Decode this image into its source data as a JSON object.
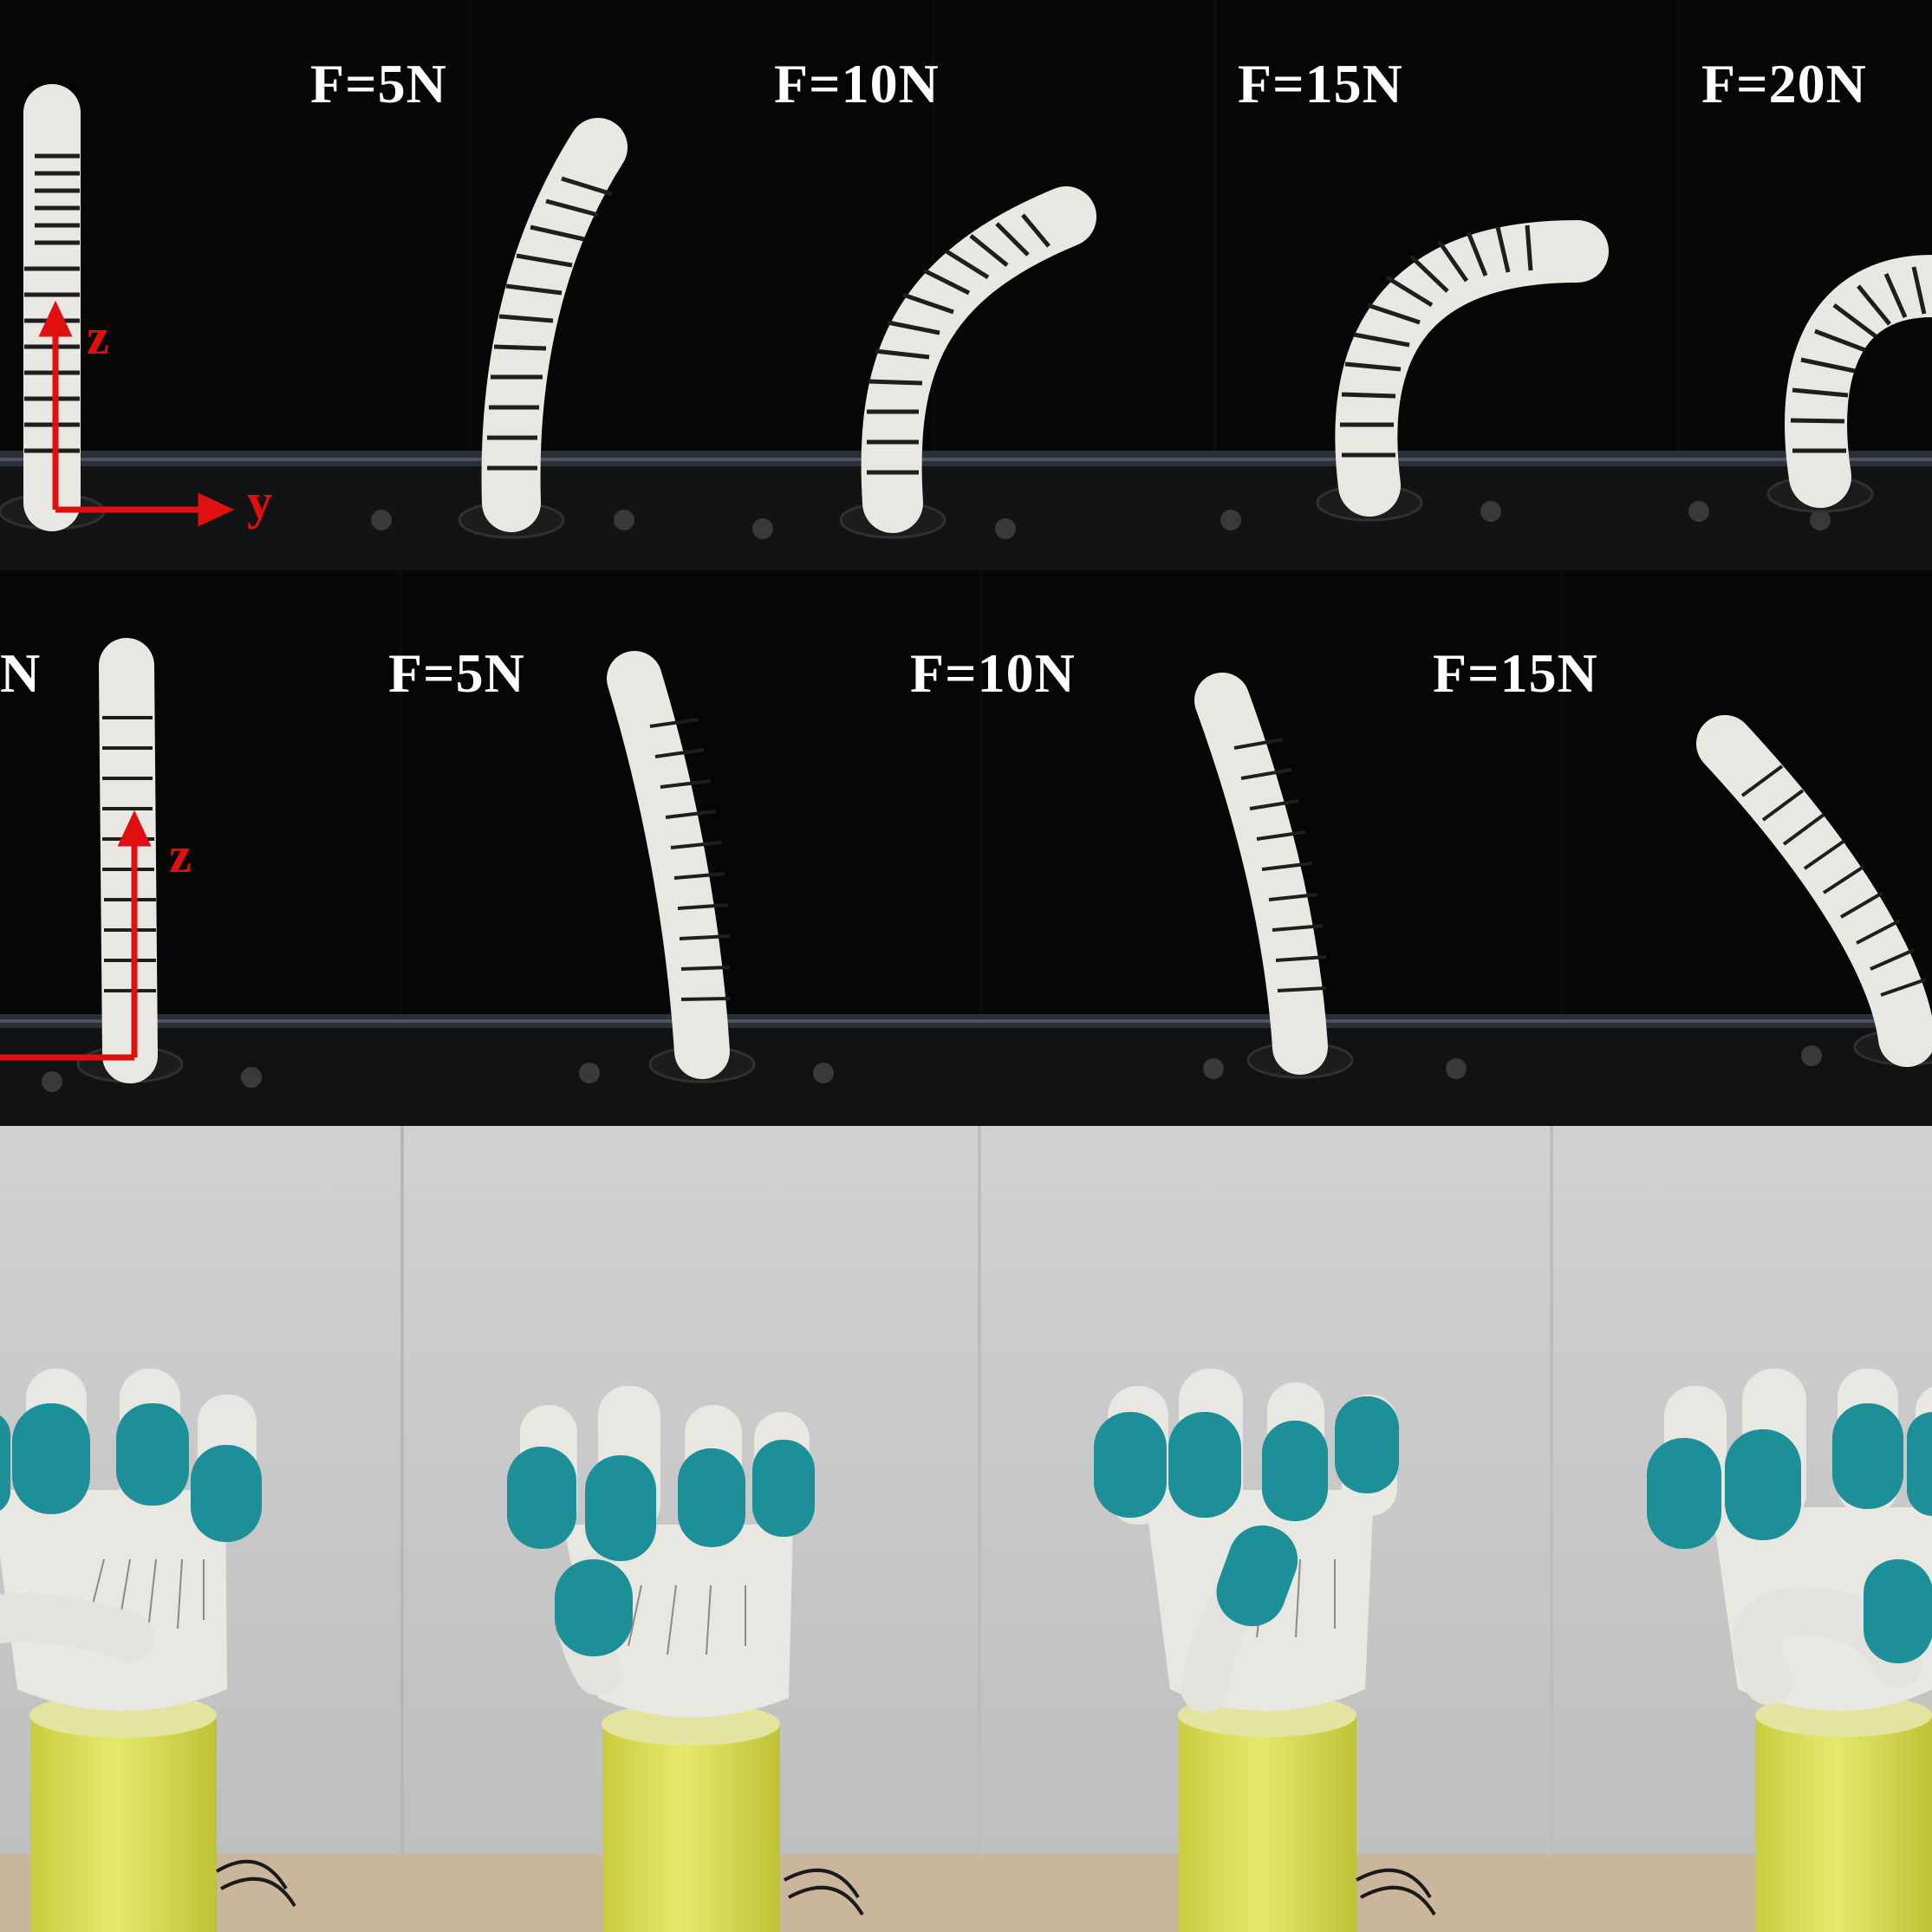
{
  "rows": [
    {
      "id": "y-direction-bending",
      "labels": [
        "F=5N",
        "F=10N",
        "F=15N",
        "F=20N"
      ],
      "axes": [
        "z",
        "y"
      ]
    },
    {
      "id": "x-direction-bending",
      "labels": [
        "N",
        "F=5N",
        "F=10N",
        "F=15N"
      ],
      "axes": [
        "z"
      ]
    },
    {
      "id": "robotic-hand-grasps",
      "labels": []
    }
  ],
  "colors": {
    "background_dark": "#070707",
    "finger_white": "#ecebe6",
    "fingertip_teal": "#1d8f98",
    "base_yellow": "#d9dc55",
    "arrow_red": "#e01010",
    "wall_gray": "#c9c9c9"
  }
}
